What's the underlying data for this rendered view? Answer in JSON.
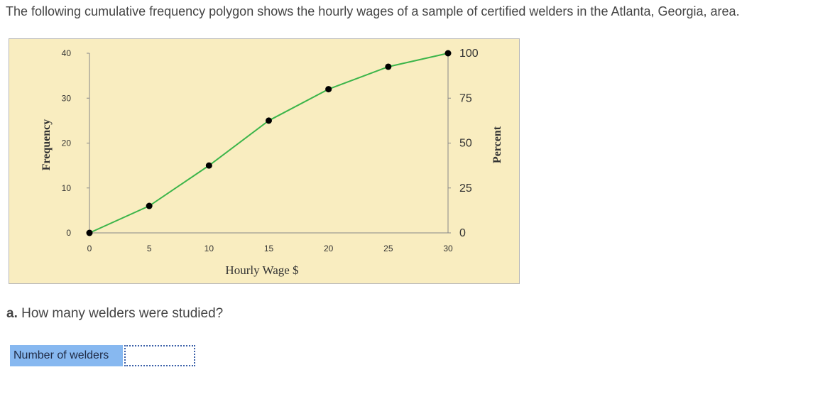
{
  "question": {
    "intro": "The following cumulative frequency polygon shows the hourly wages of a sample of certified welders in the Atlanta, Georgia, area.",
    "part_letter": "a.",
    "part_text": "How many welders were studied?"
  },
  "answer": {
    "label": "Number of welders",
    "value": "",
    "placeholder": ""
  },
  "colors": {
    "plot_background": "#f9edc0",
    "line": "#3cb54a",
    "point": "#000000",
    "axis": "#888888",
    "label_box": "#87b8f0"
  },
  "chart_data": {
    "type": "line",
    "xlabel": "Hourly Wage $",
    "ylabel": "Frequency",
    "y2label": "Percent",
    "x": [
      0,
      5,
      10,
      15,
      20,
      25,
      30
    ],
    "series": [
      {
        "values": [
          0,
          6,
          15,
          25,
          32,
          37,
          40
        ]
      }
    ],
    "xlim": [
      0,
      30
    ],
    "ylim": [
      0,
      40
    ],
    "y2lim": [
      0,
      100
    ],
    "xticks": [
      "0",
      "5",
      "10",
      "15",
      "20",
      "25",
      "30"
    ],
    "yticks": [
      "0",
      "10",
      "20",
      "30",
      "40"
    ],
    "y2ticks": [
      "0",
      "25",
      "50",
      "75",
      "100"
    ],
    "grid": false,
    "legend": "none"
  }
}
